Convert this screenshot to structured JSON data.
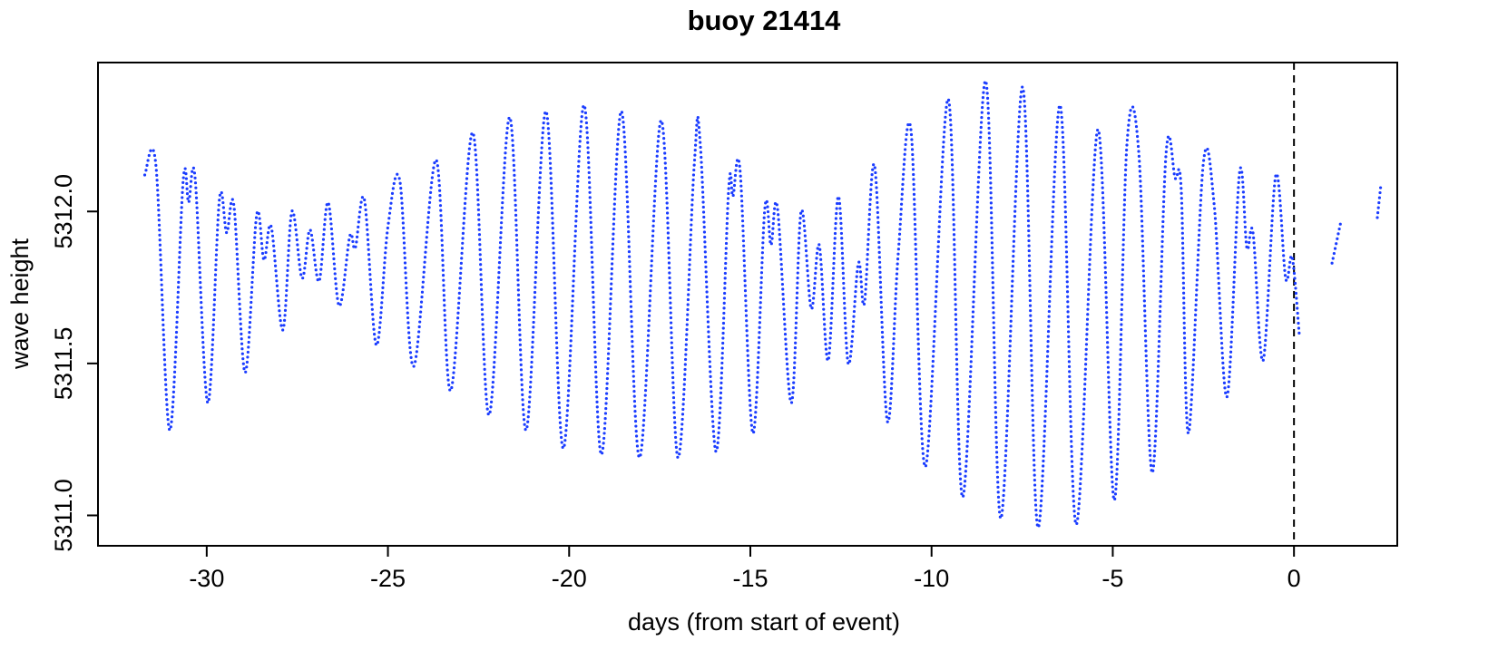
{
  "chart_data": {
    "type": "line",
    "title": "buoy 21414",
    "xlabel": "days (from start of event)",
    "ylabel": "wave height",
    "xlim": [
      -33.0,
      2.85
    ],
    "ylim": [
      5310.9,
      5312.49
    ],
    "xticks": [
      -30,
      -25,
      -20,
      -15,
      -10,
      -5,
      0
    ],
    "yticks": [
      {
        "value": 5311,
        "label": "5311.0"
      },
      5311.5,
      {
        "value": 5312,
        "label": "5312.0"
      }
    ],
    "vline": 0,
    "series": [
      {
        "name": "wave height",
        "color": "#1a3cff",
        "x": [
          -31.71,
          -31.4,
          -31.02,
          -30.65,
          -30.5,
          -30.32,
          -29.97,
          -29.65,
          -29.45,
          -29.25,
          -28.94,
          -28.62,
          -28.42,
          -28.22,
          -27.9,
          -27.65,
          -27.37,
          -27.15,
          -26.9,
          -26.65,
          -26.35,
          -26.05,
          -25.9,
          -25.65,
          -25.32,
          -25.0,
          -24.67,
          -24.29,
          -23.67,
          -23.27,
          -22.66,
          -22.21,
          -21.64,
          -21.19,
          -20.64,
          -20.16,
          -19.59,
          -19.11,
          -18.56,
          -18.06,
          -17.46,
          -17.0,
          -16.55,
          -16.38,
          -15.95,
          -15.6,
          -15.48,
          -15.28,
          -14.93,
          -14.6,
          -14.43,
          -14.25,
          -13.87,
          -13.6,
          -13.32,
          -13.1,
          -12.85,
          -12.57,
          -12.3,
          -12.02,
          -11.85,
          -11.57,
          -11.22,
          -10.92,
          -10.57,
          -10.17,
          -9.54,
          -9.14,
          -8.51,
          -8.09,
          -7.49,
          -7.06,
          -6.46,
          -6.01,
          -5.41,
          -4.96,
          -4.61,
          -4.28,
          -3.91,
          -3.53,
          -3.28,
          -3.11,
          -2.91,
          -2.5,
          -2.2,
          -1.85,
          -1.5,
          -1.3,
          -1.13,
          -0.85,
          -0.5,
          -0.23,
          -0.05,
          0.15,
          null,
          1.05,
          1.3,
          null,
          2.3,
          2.4
        ],
        "values": [
          5312.12,
          5312.15,
          5311.28,
          5312.1,
          5312.03,
          5312.11,
          5311.37,
          5312.04,
          5311.93,
          5312.02,
          5311.47,
          5311.99,
          5311.84,
          5311.95,
          5311.61,
          5312.0,
          5311.78,
          5311.94,
          5311.77,
          5312.03,
          5311.69,
          5311.92,
          5311.88,
          5312.04,
          5311.56,
          5311.95,
          5312.1,
          5311.49,
          5312.17,
          5311.41,
          5312.26,
          5311.33,
          5312.31,
          5311.28,
          5312.33,
          5311.22,
          5312.35,
          5311.2,
          5312.33,
          5311.19,
          5312.3,
          5311.19,
          5312.15,
          5312.22,
          5311.21,
          5312.07,
          5312.05,
          5312.13,
          5311.27,
          5312.01,
          5311.89,
          5312.01,
          5311.37,
          5312.0,
          5311.68,
          5311.89,
          5311.51,
          5312.05,
          5311.5,
          5311.83,
          5311.7,
          5312.15,
          5311.31,
          5311.86,
          5312.27,
          5311.16,
          5312.37,
          5311.06,
          5312.43,
          5310.99,
          5312.41,
          5310.96,
          5312.35,
          5310.97,
          5312.27,
          5311.05,
          5312.22,
          5312.19,
          5311.14,
          5312.19,
          5312.11,
          5312.07,
          5311.27,
          5312.16,
          5312.02,
          5311.39,
          5312.13,
          5311.88,
          5311.93,
          5311.51,
          5312.12,
          5311.78,
          5311.85,
          5311.59,
          null,
          5311.83,
          5311.97,
          null,
          5311.98,
          5312.09
        ]
      }
    ]
  }
}
